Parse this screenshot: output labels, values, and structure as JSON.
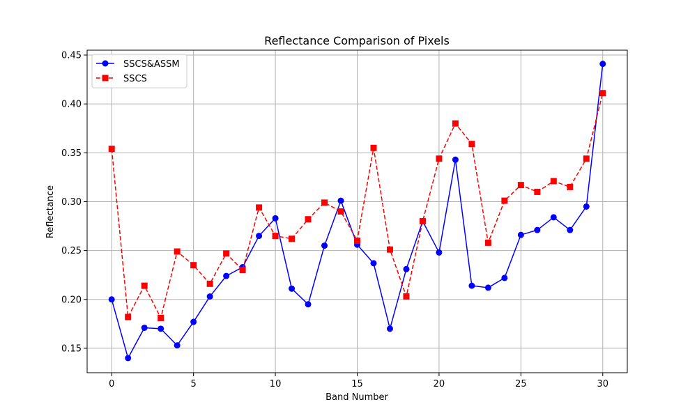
{
  "chart_data": {
    "type": "line",
    "title": "Reflectance Comparison of Pixels",
    "xlabel": "Band Number",
    "ylabel": "Reflectance",
    "xlim": [
      -1.5,
      31.5
    ],
    "ylim": [
      0.125,
      0.455
    ],
    "xticks": [
      0,
      5,
      10,
      15,
      20,
      25,
      30
    ],
    "yticks": [
      0.15,
      0.2,
      0.25,
      0.3,
      0.35,
      0.4,
      0.45
    ],
    "ytick_labels": [
      "0.15",
      "0.20",
      "0.25",
      "0.30",
      "0.35",
      "0.40",
      "0.45"
    ],
    "grid": true,
    "legend_position": "top-left",
    "x": [
      0,
      1,
      2,
      3,
      4,
      5,
      6,
      7,
      8,
      9,
      10,
      11,
      12,
      13,
      14,
      15,
      16,
      17,
      18,
      19,
      20,
      21,
      22,
      23,
      24,
      25,
      26,
      27,
      28,
      29,
      30
    ],
    "series": [
      {
        "name": "SSCS&ASSM",
        "color": "#0000ff",
        "line_style": "solid",
        "marker": "circle",
        "values": [
          0.2,
          0.14,
          0.171,
          0.17,
          0.153,
          0.177,
          0.203,
          0.224,
          0.233,
          0.265,
          0.283,
          0.211,
          0.195,
          0.255,
          0.301,
          0.256,
          0.237,
          0.17,
          0.231,
          0.28,
          0.248,
          0.343,
          0.214,
          0.212,
          0.222,
          0.266,
          0.271,
          0.284,
          0.271,
          0.295,
          0.441
        ]
      },
      {
        "name": "SSCS",
        "color": "#ff0000",
        "line_style": "dashed",
        "marker": "square",
        "values": [
          0.354,
          0.182,
          0.214,
          0.181,
          0.249,
          0.235,
          0.216,
          0.247,
          0.23,
          0.294,
          0.265,
          0.262,
          0.282,
          0.299,
          0.29,
          0.26,
          0.355,
          0.251,
          0.203,
          0.28,
          0.344,
          0.38,
          0.359,
          0.258,
          0.301,
          0.317,
          0.31,
          0.321,
          0.315,
          0.344,
          0.411
        ]
      }
    ]
  }
}
